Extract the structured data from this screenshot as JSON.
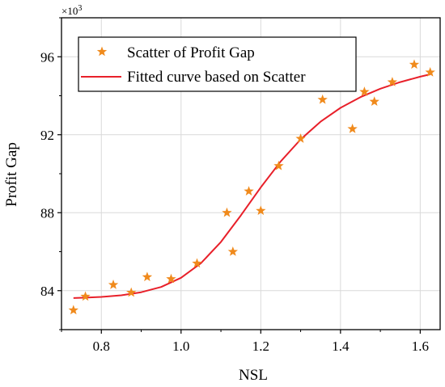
{
  "chart_data": {
    "type": "scatter",
    "xlabel": "NSL",
    "ylabel": "Profit Gap",
    "y_multiplier": "×10",
    "y_multiplier_exp": "3",
    "xlim": [
      0.7,
      1.65
    ],
    "ylim": [
      82.0,
      98.0
    ],
    "xticks": [
      0.8,
      1.0,
      1.2,
      1.4,
      1.6
    ],
    "xtick_labels": [
      "0.8",
      "1.0",
      "1.2",
      "1.4",
      "1.6"
    ],
    "yticks": [
      84,
      88,
      92,
      96
    ],
    "ytick_labels": [
      "84",
      "88",
      "92",
      "96"
    ],
    "grid": true,
    "legend_position": "top-left",
    "series": [
      {
        "name": "Scatter of Profit Gap",
        "kind": "scatter",
        "marker": "star",
        "color": "#F08A1C",
        "x": [
          0.73,
          0.76,
          0.83,
          0.875,
          0.915,
          0.975,
          1.04,
          1.115,
          1.13,
          1.17,
          1.2,
          1.245,
          1.3,
          1.355,
          1.43,
          1.46,
          1.485,
          1.53,
          1.585,
          1.625
        ],
        "y": [
          83.0,
          83.7,
          84.3,
          83.9,
          84.7,
          84.6,
          85.4,
          88.0,
          86.0,
          89.1,
          88.1,
          90.4,
          91.8,
          93.8,
          92.3,
          94.2,
          93.7,
          94.7,
          95.6,
          95.2
        ]
      },
      {
        "name": "Fitted curve based on Scatter",
        "kind": "line",
        "color": "#E8202A",
        "x": [
          0.73,
          0.76,
          0.8,
          0.85,
          0.9,
          0.95,
          1.0,
          1.05,
          1.1,
          1.15,
          1.2,
          1.25,
          1.3,
          1.35,
          1.4,
          1.45,
          1.5,
          1.55,
          1.6,
          1.625
        ],
        "y": [
          83.62,
          83.64,
          83.68,
          83.76,
          83.92,
          84.19,
          84.66,
          85.41,
          86.5,
          87.86,
          89.3,
          90.63,
          91.76,
          92.67,
          93.38,
          93.93,
          94.36,
          94.7,
          94.98,
          95.1
        ]
      }
    ]
  }
}
